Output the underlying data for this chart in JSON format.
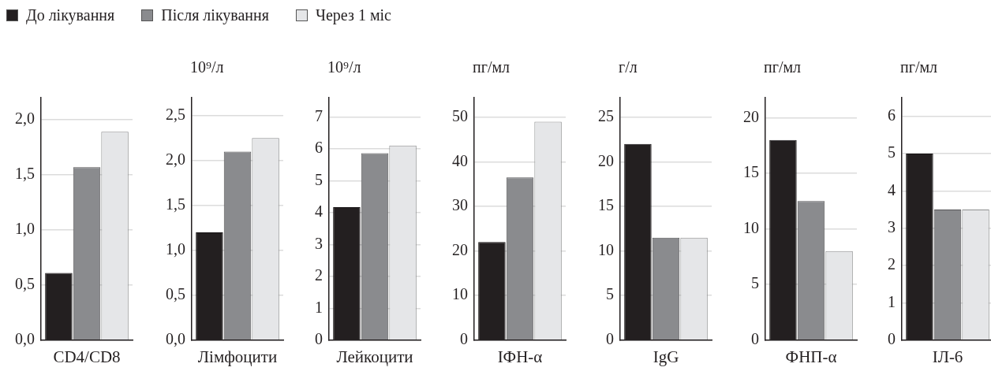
{
  "chart_data": [
    {
      "type": "bar",
      "xlabel": "CD4/CD8",
      "categories": [
        null
      ],
      "ylim": [
        0,
        2.2
      ],
      "yticks": [
        {
          "value": 0,
          "label": "0,0"
        },
        {
          "value": 0.5,
          "label": "0,5"
        },
        {
          "value": 1,
          "label": "1,0"
        },
        {
          "value": 1.5,
          "label": "1,5"
        },
        {
          "value": 2,
          "label": "2,0"
        }
      ],
      "grid": "y",
      "legend": "top right",
      "series": [
        {
          "name": "До лікування",
          "color": "#231f20",
          "values": [
            0.61
          ]
        },
        {
          "name": "Після лікування",
          "color": "#8a8b8e",
          "values": [
            1.57
          ]
        },
        {
          "name": "Через 1 міс",
          "color": "#e5e6e8",
          "values": [
            1.89
          ]
        }
      ]
    },
    {
      "type": "bar",
      "xlabel": "Лімфоцити",
      "ylabel": "10⁹/л",
      "categories": [
        null
      ],
      "ylim": [
        0,
        2.7
      ],
      "yticks": [
        {
          "value": 0,
          "label": "0,0"
        },
        {
          "value": 0.5,
          "label": "0,5"
        },
        {
          "value": 1,
          "label": "1,0"
        },
        {
          "value": 1.5,
          "label": "1,5"
        },
        {
          "value": 2,
          "label": "2,0"
        },
        {
          "value": 2.5,
          "label": "2,5"
        }
      ],
      "grid": "y",
      "series": [
        {
          "color": "#231f20",
          "values": [
            1.2
          ]
        },
        {
          "color": "#8a8b8e",
          "values": [
            2.1
          ]
        },
        {
          "color": "#e5e6e8",
          "values": [
            2.25
          ]
        }
      ]
    },
    {
      "type": "bar",
      "xlabel": "Лейкоцити",
      "ylabel": "10⁹/л",
      "categories": [
        null
      ],
      "ylim": [
        0,
        7.6
      ],
      "yticks": [
        0,
        1,
        2,
        3,
        4,
        5,
        6,
        7
      ],
      "grid": "y",
      "series": [
        {
          "color": "#231f20",
          "values": [
            4.17
          ]
        },
        {
          "color": "#8a8b8e",
          "values": [
            5.86
          ]
        },
        {
          "color": "#e5e6e8",
          "values": [
            6.1
          ]
        }
      ]
    },
    {
      "type": "bar",
      "xlabel": "ІФН-α",
      "ylabel": "пг/мл",
      "categories": [
        null
      ],
      "ylim": [
        0,
        54.4
      ],
      "yticks": [
        0,
        10,
        20,
        30,
        40,
        50
      ],
      "grid": "y",
      "series": [
        {
          "color": "#231f20",
          "values": [
            22
          ]
        },
        {
          "color": "#8a8b8e",
          "values": [
            36.5
          ]
        },
        {
          "color": "#e5e6e8",
          "values": [
            49
          ]
        }
      ]
    },
    {
      "type": "bar",
      "xlabel": "IgG",
      "ylabel": "г/л",
      "categories": [
        null
      ],
      "ylim": [
        0,
        27.2
      ],
      "yticks": [
        0,
        5,
        10,
        15,
        20,
        25
      ],
      "grid": "y",
      "series": [
        {
          "color": "#231f20",
          "values": [
            22
          ]
        },
        {
          "color": "#8a8b8e",
          "values": [
            11.5
          ]
        },
        {
          "color": "#e5e6e8",
          "values": [
            11.5
          ]
        }
      ]
    },
    {
      "type": "bar",
      "xlabel": "ФНП-α",
      "ylabel": "пг/мл",
      "categories": [
        null
      ],
      "ylim": [
        0,
        21.8
      ],
      "yticks": [
        0,
        5,
        10,
        15,
        20
      ],
      "grid": "y",
      "series": [
        {
          "color": "#231f20",
          "values": [
            18
          ]
        },
        {
          "color": "#8a8b8e",
          "values": [
            12.5
          ]
        },
        {
          "color": "#e5e6e8",
          "values": [
            8
          ]
        }
      ]
    },
    {
      "type": "bar",
      "xlabel": "ІЛ-6",
      "ylabel": "пг/мл",
      "categories": [
        null
      ],
      "ylim": [
        0,
        6.5
      ],
      "yticks": [
        0,
        1,
        2,
        3,
        4,
        5,
        6
      ],
      "grid": "y",
      "series": [
        {
          "color": "#231f20",
          "values": [
            5
          ]
        },
        {
          "color": "#8a8b8e",
          "values": [
            3.5
          ]
        },
        {
          "color": "#e5e6e8",
          "values": [
            3.5
          ]
        }
      ]
    }
  ]
}
